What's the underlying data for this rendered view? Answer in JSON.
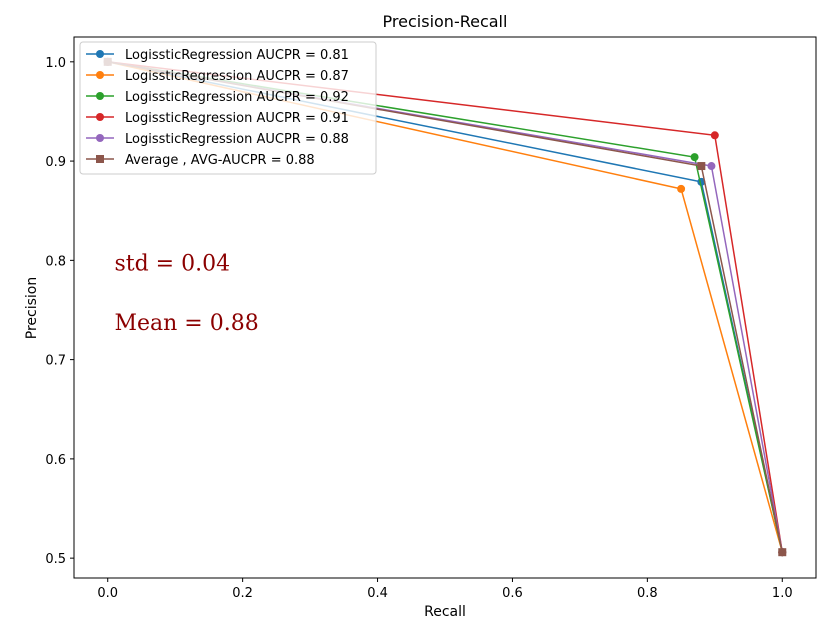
{
  "chart_data": {
    "type": "line",
    "title": "Precision-Recall",
    "xlabel": "Recall",
    "ylabel": "Precision",
    "xlim": [
      -0.05,
      1.05
    ],
    "ylim": [
      0.48,
      1.025
    ],
    "xticks": [
      0.0,
      0.2,
      0.4,
      0.6,
      0.8,
      1.0
    ],
    "xtick_labels": [
      "0.0",
      "0.2",
      "0.4",
      "0.6",
      "0.8",
      "1.0"
    ],
    "yticks": [
      0.5,
      0.6,
      0.7,
      0.8,
      0.9,
      1.0
    ],
    "ytick_labels": [
      "0.5",
      "0.6",
      "0.7",
      "0.8",
      "0.9",
      "1.0"
    ],
    "grid": false,
    "legend_position": "top-left",
    "series": [
      {
        "name": "LogissticRegression  AUCPR = 0.81",
        "color": "#1f77b4",
        "marker": "circle",
        "x": [
          0.0,
          0.88,
          1.0
        ],
        "y": [
          1.0,
          0.879,
          0.506
        ]
      },
      {
        "name": "LogissticRegression  AUCPR = 0.87",
        "color": "#ff7f0e",
        "marker": "circle",
        "x": [
          0.0,
          0.85,
          1.0
        ],
        "y": [
          1.0,
          0.872,
          0.506
        ]
      },
      {
        "name": "LogissticRegression  AUCPR = 0.92",
        "color": "#2ca02c",
        "marker": "circle",
        "x": [
          0.0,
          0.87,
          1.0
        ],
        "y": [
          1.0,
          0.904,
          0.506
        ]
      },
      {
        "name": "LogissticRegression  AUCPR = 0.91",
        "color": "#d62728",
        "marker": "circle",
        "x": [
          0.0,
          0.9,
          1.0
        ],
        "y": [
          1.0,
          0.926,
          0.506
        ]
      },
      {
        "name": "LogissticRegression  AUCPR = 0.88",
        "color": "#9467bd",
        "marker": "circle",
        "x": [
          0.0,
          0.895,
          1.0
        ],
        "y": [
          1.0,
          0.895,
          0.506
        ]
      },
      {
        "name": "Average , AVG-AUCPR = 0.88",
        "color": "#8c564b",
        "marker": "square",
        "x": [
          0.0,
          0.88,
          1.0
        ],
        "y": [
          1.0,
          0.895,
          0.506
        ]
      }
    ],
    "annotations": [
      {
        "text": "std = 0.04",
        "x": 0.01,
        "y": 0.79
      },
      {
        "text": "Mean = 0.88",
        "x": 0.01,
        "y": 0.73
      }
    ]
  }
}
